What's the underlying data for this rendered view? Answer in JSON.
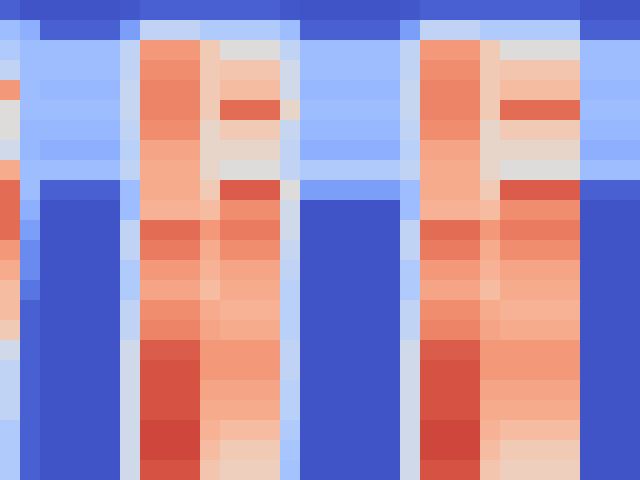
{
  "chart_data": {
    "type": "heatmap",
    "color": "coolwarm",
    "tick_labels": false,
    "zlim": [
      0,
      1
    ],
    "cells": [
      [
        0.05,
        0.02,
        0.02,
        0.02,
        0.02,
        0.02,
        0.03,
        0.05,
        0.05,
        0.05,
        0.05,
        0.05,
        0.05,
        0.05,
        0.03,
        0.02,
        0.02,
        0.02,
        0.02,
        0.02,
        0.03,
        0.05,
        0.05,
        0.05,
        0.05,
        0.05,
        0.05,
        0.05,
        0.05,
        0.02,
        0.02,
        0.02
      ],
      [
        0.3,
        0.25,
        0.05,
        0.05,
        0.05,
        0.05,
        0.2,
        0.4,
        0.4,
        0.4,
        0.35,
        0.35,
        0.35,
        0.35,
        0.3,
        0.05,
        0.05,
        0.05,
        0.05,
        0.05,
        0.2,
        0.4,
        0.4,
        0.4,
        0.35,
        0.35,
        0.35,
        0.35,
        0.35,
        0.05,
        0.05,
        0.05
      ],
      [
        0.35,
        0.3,
        0.3,
        0.3,
        0.3,
        0.3,
        0.4,
        0.75,
        0.75,
        0.75,
        0.6,
        0.5,
        0.5,
        0.5,
        0.4,
        0.3,
        0.3,
        0.3,
        0.3,
        0.3,
        0.4,
        0.75,
        0.75,
        0.75,
        0.6,
        0.5,
        0.5,
        0.5,
        0.5,
        0.3,
        0.3,
        0.3
      ],
      [
        0.4,
        0.3,
        0.3,
        0.3,
        0.3,
        0.3,
        0.4,
        0.78,
        0.78,
        0.78,
        0.6,
        0.62,
        0.62,
        0.62,
        0.45,
        0.3,
        0.3,
        0.3,
        0.3,
        0.3,
        0.4,
        0.78,
        0.78,
        0.78,
        0.6,
        0.62,
        0.62,
        0.62,
        0.62,
        0.3,
        0.3,
        0.3
      ],
      [
        0.75,
        0.3,
        0.28,
        0.28,
        0.28,
        0.28,
        0.42,
        0.8,
        0.8,
        0.8,
        0.6,
        0.65,
        0.65,
        0.65,
        0.45,
        0.28,
        0.28,
        0.28,
        0.28,
        0.28,
        0.42,
        0.8,
        0.8,
        0.8,
        0.6,
        0.65,
        0.65,
        0.65,
        0.65,
        0.28,
        0.28,
        0.28
      ],
      [
        0.5,
        0.3,
        0.3,
        0.3,
        0.3,
        0.3,
        0.42,
        0.8,
        0.8,
        0.8,
        0.6,
        0.85,
        0.85,
        0.85,
        0.55,
        0.3,
        0.3,
        0.3,
        0.3,
        0.3,
        0.42,
        0.8,
        0.8,
        0.8,
        0.6,
        0.85,
        0.85,
        0.85,
        0.85,
        0.3,
        0.3,
        0.3
      ],
      [
        0.5,
        0.28,
        0.28,
        0.28,
        0.28,
        0.28,
        0.4,
        0.78,
        0.78,
        0.78,
        0.55,
        0.6,
        0.6,
        0.6,
        0.42,
        0.28,
        0.28,
        0.28,
        0.28,
        0.28,
        0.4,
        0.78,
        0.78,
        0.78,
        0.55,
        0.6,
        0.6,
        0.6,
        0.6,
        0.28,
        0.28,
        0.28
      ],
      [
        0.45,
        0.28,
        0.25,
        0.25,
        0.25,
        0.25,
        0.38,
        0.72,
        0.72,
        0.72,
        0.55,
        0.55,
        0.55,
        0.55,
        0.4,
        0.25,
        0.25,
        0.25,
        0.25,
        0.25,
        0.38,
        0.72,
        0.72,
        0.72,
        0.55,
        0.55,
        0.55,
        0.55,
        0.55,
        0.25,
        0.25,
        0.25
      ],
      [
        0.7,
        0.3,
        0.3,
        0.3,
        0.3,
        0.3,
        0.4,
        0.7,
        0.7,
        0.7,
        0.55,
        0.5,
        0.5,
        0.5,
        0.4,
        0.35,
        0.35,
        0.35,
        0.35,
        0.35,
        0.4,
        0.7,
        0.7,
        0.7,
        0.55,
        0.5,
        0.5,
        0.5,
        0.5,
        0.3,
        0.3,
        0.3
      ],
      [
        0.85,
        0.3,
        0.05,
        0.05,
        0.05,
        0.05,
        0.3,
        0.7,
        0.7,
        0.7,
        0.6,
        0.88,
        0.88,
        0.88,
        0.5,
        0.2,
        0.2,
        0.2,
        0.2,
        0.2,
        0.3,
        0.7,
        0.7,
        0.7,
        0.6,
        0.88,
        0.88,
        0.88,
        0.88,
        0.05,
        0.05,
        0.05
      ],
      [
        0.85,
        0.25,
        0.02,
        0.02,
        0.02,
        0.02,
        0.3,
        0.68,
        0.68,
        0.68,
        0.65,
        0.78,
        0.78,
        0.78,
        0.45,
        0.02,
        0.02,
        0.02,
        0.02,
        0.02,
        0.3,
        0.68,
        0.68,
        0.68,
        0.65,
        0.78,
        0.78,
        0.78,
        0.78,
        0.02,
        0.02,
        0.02
      ],
      [
        0.85,
        0.2,
        0.02,
        0.02,
        0.02,
        0.02,
        0.4,
        0.85,
        0.85,
        0.85,
        0.75,
        0.82,
        0.82,
        0.82,
        0.45,
        0.02,
        0.02,
        0.02,
        0.02,
        0.02,
        0.4,
        0.85,
        0.85,
        0.85,
        0.75,
        0.82,
        0.82,
        0.82,
        0.82,
        0.02,
        0.02,
        0.02
      ],
      [
        0.75,
        0.15,
        0.02,
        0.02,
        0.02,
        0.02,
        0.4,
        0.82,
        0.82,
        0.82,
        0.7,
        0.78,
        0.78,
        0.78,
        0.42,
        0.02,
        0.02,
        0.02,
        0.02,
        0.02,
        0.4,
        0.82,
        0.82,
        0.82,
        0.7,
        0.78,
        0.78,
        0.78,
        0.78,
        0.02,
        0.02,
        0.02
      ],
      [
        0.7,
        0.15,
        0.02,
        0.02,
        0.02,
        0.02,
        0.35,
        0.75,
        0.75,
        0.75,
        0.68,
        0.72,
        0.72,
        0.72,
        0.4,
        0.02,
        0.02,
        0.02,
        0.02,
        0.02,
        0.35,
        0.75,
        0.75,
        0.75,
        0.68,
        0.72,
        0.72,
        0.72,
        0.72,
        0.02,
        0.02,
        0.02
      ],
      [
        0.65,
        0.1,
        0.02,
        0.02,
        0.02,
        0.02,
        0.35,
        0.72,
        0.72,
        0.72,
        0.65,
        0.7,
        0.7,
        0.7,
        0.38,
        0.02,
        0.02,
        0.02,
        0.02,
        0.02,
        0.35,
        0.72,
        0.72,
        0.72,
        0.65,
        0.7,
        0.7,
        0.7,
        0.7,
        0.02,
        0.02,
        0.02
      ],
      [
        0.65,
        0.05,
        0.02,
        0.02,
        0.02,
        0.02,
        0.4,
        0.78,
        0.78,
        0.78,
        0.7,
        0.68,
        0.68,
        0.68,
        0.38,
        0.02,
        0.02,
        0.02,
        0.02,
        0.02,
        0.4,
        0.78,
        0.78,
        0.78,
        0.7,
        0.68,
        0.68,
        0.68,
        0.68,
        0.02,
        0.02,
        0.02
      ],
      [
        0.6,
        0.05,
        0.02,
        0.02,
        0.02,
        0.02,
        0.4,
        0.8,
        0.8,
        0.8,
        0.72,
        0.7,
        0.7,
        0.7,
        0.38,
        0.02,
        0.02,
        0.02,
        0.02,
        0.02,
        0.4,
        0.8,
        0.8,
        0.8,
        0.72,
        0.7,
        0.7,
        0.7,
        0.7,
        0.02,
        0.02,
        0.02
      ],
      [
        0.45,
        0.05,
        0.02,
        0.02,
        0.02,
        0.02,
        0.45,
        0.88,
        0.88,
        0.88,
        0.75,
        0.75,
        0.75,
        0.75,
        0.4,
        0.02,
        0.02,
        0.02,
        0.02,
        0.02,
        0.45,
        0.88,
        0.88,
        0.88,
        0.75,
        0.75,
        0.75,
        0.75,
        0.75,
        0.02,
        0.02,
        0.02
      ],
      [
        0.4,
        0.05,
        0.02,
        0.02,
        0.02,
        0.02,
        0.45,
        0.9,
        0.9,
        0.9,
        0.75,
        0.75,
        0.75,
        0.75,
        0.4,
        0.02,
        0.02,
        0.02,
        0.02,
        0.02,
        0.45,
        0.9,
        0.9,
        0.9,
        0.75,
        0.75,
        0.75,
        0.75,
        0.75,
        0.02,
        0.02,
        0.02
      ],
      [
        0.4,
        0.05,
        0.02,
        0.02,
        0.02,
        0.02,
        0.45,
        0.9,
        0.9,
        0.9,
        0.72,
        0.72,
        0.72,
        0.72,
        0.38,
        0.02,
        0.02,
        0.02,
        0.02,
        0.02,
        0.45,
        0.9,
        0.9,
        0.9,
        0.72,
        0.72,
        0.72,
        0.72,
        0.72,
        0.02,
        0.02,
        0.02
      ],
      [
        0.4,
        0.05,
        0.02,
        0.02,
        0.02,
        0.02,
        0.45,
        0.9,
        0.9,
        0.9,
        0.7,
        0.7,
        0.7,
        0.7,
        0.38,
        0.02,
        0.02,
        0.02,
        0.02,
        0.02,
        0.45,
        0.9,
        0.9,
        0.9,
        0.7,
        0.7,
        0.7,
        0.7,
        0.7,
        0.02,
        0.02,
        0.02
      ],
      [
        0.35,
        0.05,
        0.02,
        0.02,
        0.02,
        0.02,
        0.45,
        0.92,
        0.92,
        0.92,
        0.68,
        0.65,
        0.65,
        0.65,
        0.35,
        0.02,
        0.02,
        0.02,
        0.02,
        0.02,
        0.45,
        0.92,
        0.92,
        0.92,
        0.68,
        0.65,
        0.65,
        0.65,
        0.65,
        0.02,
        0.02,
        0.02
      ],
      [
        0.35,
        0.05,
        0.02,
        0.02,
        0.02,
        0.02,
        0.45,
        0.92,
        0.92,
        0.92,
        0.65,
        0.6,
        0.6,
        0.6,
        0.33,
        0.02,
        0.02,
        0.02,
        0.02,
        0.02,
        0.45,
        0.92,
        0.92,
        0.92,
        0.65,
        0.6,
        0.6,
        0.6,
        0.6,
        0.02,
        0.02,
        0.02
      ],
      [
        0.35,
        0.05,
        0.02,
        0.02,
        0.02,
        0.02,
        0.45,
        0.9,
        0.9,
        0.9,
        0.62,
        0.58,
        0.58,
        0.58,
        0.32,
        0.02,
        0.02,
        0.02,
        0.02,
        0.02,
        0.45,
        0.9,
        0.9,
        0.9,
        0.62,
        0.58,
        0.58,
        0.58,
        0.58,
        0.02,
        0.02,
        0.02
      ]
    ]
  }
}
